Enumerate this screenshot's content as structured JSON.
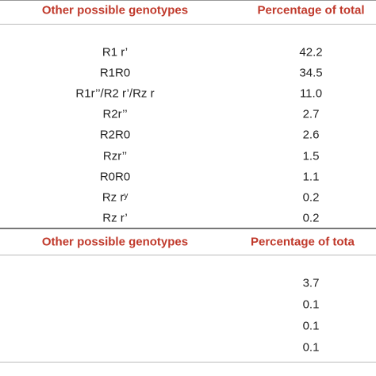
{
  "table": {
    "header": [
      "Other possible genotypes",
      "Percentage of total"
    ],
    "rows": [
      [
        "R1 r’",
        "42.2"
      ],
      [
        "R1R0",
        "34.5"
      ],
      [
        "R1r’’/R2 r’/Rz r",
        "11.0"
      ],
      [
        "R2r’’",
        "2.7"
      ],
      [
        "R2R0",
        "2.6"
      ],
      [
        "Rzr’’",
        "1.5"
      ],
      [
        "R0R0",
        "1.1"
      ],
      [
        "Rz rʸ",
        "0.2"
      ],
      [
        "Rz r’",
        "0.2"
      ]
    ]
  },
  "table2": {
    "header": [
      "Other possible genotypes",
      "Percentage of tota"
    ],
    "values": [
      "3.7",
      "0.1",
      "0.1",
      "0.1"
    ]
  }
}
